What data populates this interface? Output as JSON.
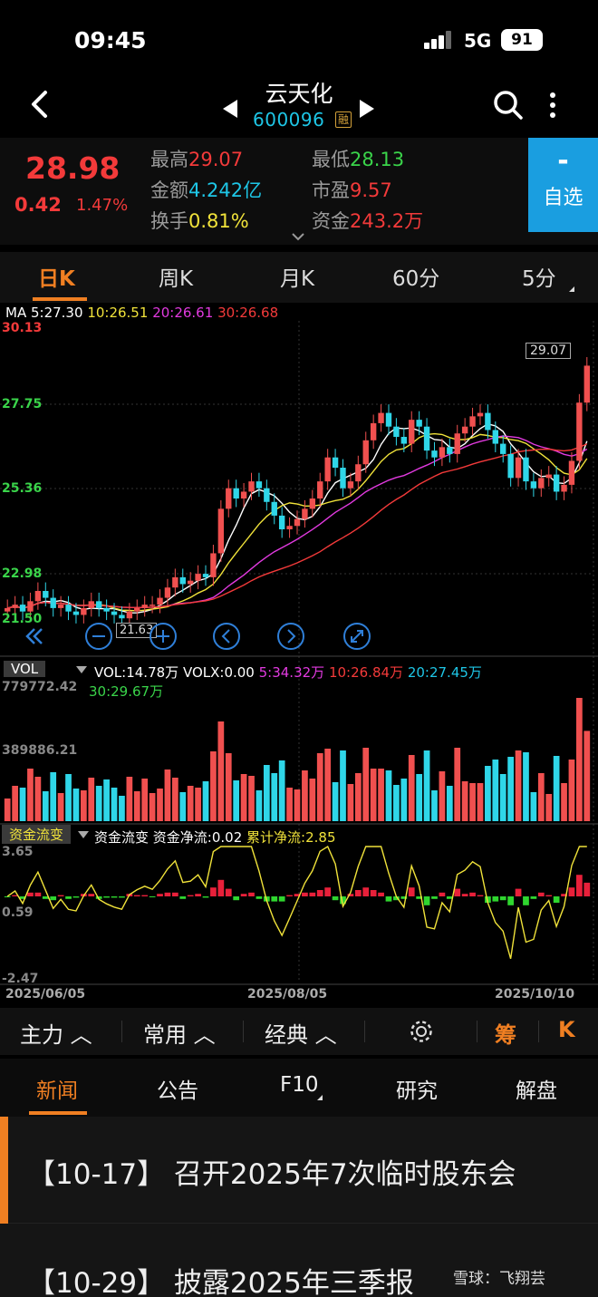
{
  "status": {
    "time": "09:45",
    "network": "5G",
    "battery": "91"
  },
  "header": {
    "name": "云天化",
    "code": "600096",
    "rong": "融"
  },
  "quote": {
    "price": "28.98",
    "change": "0.42",
    "change_pct": "1.47%",
    "high_k": "最高",
    "high_v": "29.07",
    "low_k": "最低",
    "low_v": "28.13",
    "amount_k": "金额",
    "amount_v": "4.242亿",
    "pe_k": "市盈",
    "pe_v": "9.57",
    "turnover_k": "换手",
    "turnover_v": "0.81%",
    "fund_k": "资金",
    "fund_v": "243.2万",
    "watch_sign": "-",
    "watch_label": "自选"
  },
  "periods": [
    "日K",
    "周K",
    "月K",
    "60分",
    "5分"
  ],
  "chart_data": [
    {
      "type": "candlestick",
      "title": "",
      "ma_label": "MA",
      "ma": {
        "ma5": "5:27.30",
        "ma10": "10:26.51",
        "ma20": "20:26.61",
        "ma30": "30:26.68"
      },
      "y_ticks": [
        "30.13",
        "27.75",
        "25.36",
        "22.98",
        "21.50"
      ],
      "ylim": [
        21.5,
        30.13
      ],
      "high_marker": "29.07",
      "low_marker": "21.63",
      "x_ticks": [
        "2025/06/05",
        "2025/08/05",
        "2025/10/10"
      ],
      "closes": [
        21.9,
        22.0,
        21.8,
        22.1,
        22.4,
        22.2,
        21.9,
        22.0,
        21.8,
        21.7,
        21.9,
        22.1,
        21.9,
        21.8,
        21.7,
        21.6,
        21.8,
        21.9,
        22.0,
        22.0,
        22.2,
        22.5,
        22.8,
        22.6,
        22.7,
        22.9,
        22.8,
        23.5,
        24.8,
        25.4,
        25.1,
        25.3,
        25.6,
        25.4,
        25.0,
        24.6,
        24.2,
        24.3,
        24.5,
        24.8,
        25.1,
        25.6,
        26.3,
        26.0,
        25.4,
        25.6,
        26.1,
        26.8,
        27.3,
        27.6,
        27.2,
        26.9,
        26.7,
        27.4,
        27.2,
        26.5,
        26.3,
        26.6,
        26.4,
        27.0,
        27.2,
        27.5,
        27.6,
        27.1,
        26.7,
        26.4,
        25.7,
        26.3,
        25.6,
        25.4,
        25.7,
        25.8,
        25.3,
        25.5,
        26.2,
        27.9,
        28.98
      ],
      "volume_label": "VOL",
      "volume": {
        "vol": "VOL:14.78万",
        "volx": "VOLX:0.00",
        "ma5": "5:34.32万",
        "ma10": "10:26.84万",
        "ma20": "20:27.45万",
        "ma30": "30:29.67万"
      },
      "volume_ticks": [
        "779772.42",
        "389886.21"
      ],
      "flow_label": "资金流变",
      "flow": {
        "name": "资金流变",
        "net": "资金净流:0.02",
        "cum": "累计净流:2.85"
      },
      "flow_ticks": [
        "3.65",
        "0.59",
        "-2.47"
      ]
    }
  ],
  "toolbar": {
    "main": "主力",
    "common": "常用",
    "classic": "经典",
    "chip": "筹",
    "k": "K"
  },
  "news_tabs": [
    "新闻",
    "公告",
    "F10",
    "研究",
    "解盘"
  ],
  "news": [
    {
      "text": "【10-17】  召开2025年7次临时股东会"
    },
    {
      "text": "【10-29】  披露2025年三季报"
    }
  ],
  "watermark": "雪球：飞翔芸"
}
